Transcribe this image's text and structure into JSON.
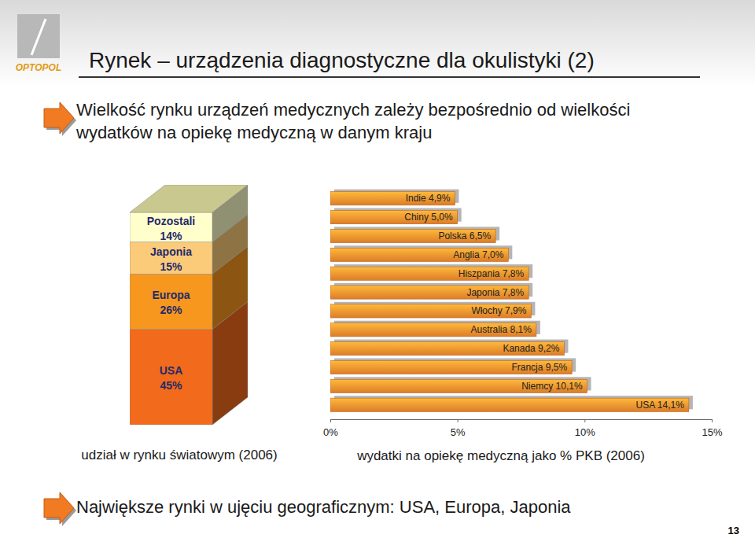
{
  "slide": {
    "logo": "OPTOPOL",
    "title": "Rynek – urządzenia diagnostyczne dla okulistyki (2)",
    "bullet": [
      "Wielkość rynku urządzeń medycznych zależy bezpośrednio od wielkości",
      "wydatków na opiekę medyczną w danym kraju"
    ],
    "footer": "Największe rynki w ujęciu geograficznym: USA, Europa, Japonia",
    "page": 13
  },
  "chart_data": [
    {
      "type": "bar",
      "stacked": true,
      "categories": [
        null
      ],
      "x_label": "udział w rynku światowym (2006)",
      "ylim": [
        0,
        100
      ],
      "tick_labels": false,
      "data_labels": true,
      "series": [
        {
          "name": "USA",
          "color": "#F26A1B",
          "values": [
            45
          ],
          "value_labels": [
            "45%"
          ]
        },
        {
          "name": "Europa",
          "color": "#F7971E",
          "values": [
            26
          ],
          "value_labels": [
            "26%"
          ]
        },
        {
          "name": "Japonia",
          "color": "#FBCB7A",
          "values": [
            15
          ],
          "value_labels": [
            "15%"
          ]
        },
        {
          "name": "Pozostali",
          "color": "#FFFFCC",
          "values": [
            14
          ],
          "value_labels": [
            "14%"
          ]
        }
      ]
    },
    {
      "type": "bar",
      "orientation": "horizontal",
      "categories": [
        "Indie",
        "Chiny",
        "Polska",
        "Anglia",
        "Hiszpania",
        "Japonia",
        "Włochy",
        "Australia",
        "Kanada",
        "Francja",
        "Niemcy",
        "USA"
      ],
      "values": [
        4.9,
        5.0,
        6.5,
        7.0,
        7.8,
        7.8,
        7.9,
        8.1,
        9.2,
        9.5,
        10.1,
        14.1
      ],
      "value_labels": [
        "4,9%",
        "5,0%",
        "6,5%",
        "7,0%",
        "7,8%",
        "7,8%",
        "7,9%",
        "8,1%",
        "9,2%",
        "9,5%",
        "10,1%",
        "14,1%"
      ],
      "color": "#F58B2C",
      "xlim": [
        0,
        15
      ],
      "xticks": [
        {
          "value": 0,
          "label": "0%"
        },
        {
          "value": 5,
          "label": "5%"
        },
        {
          "value": 10,
          "label": "10%"
        },
        {
          "value": 15,
          "label": "15%"
        }
      ],
      "x_label": "wydatki na opiekę medyczną jako % PKB (2006)",
      "tick_labels": "x",
      "data_labels": true
    }
  ]
}
